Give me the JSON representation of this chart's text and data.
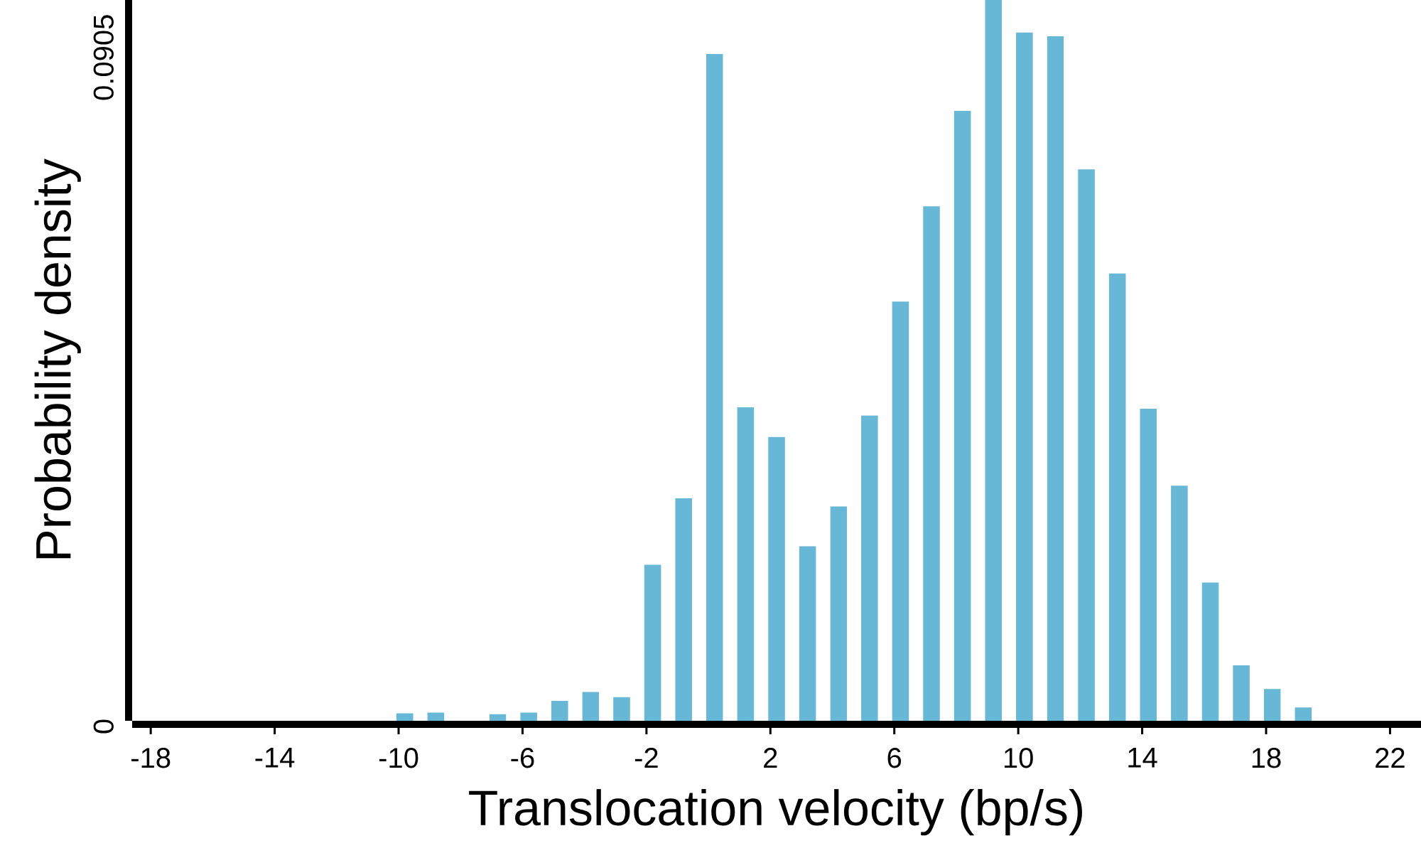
{
  "chart_data": {
    "type": "bar",
    "xlabel": "Translocation velocity (bp/s)",
    "ylabel": "Probability density",
    "color": "#67b8d6",
    "x": [
      -9.8,
      -8.8,
      -7.8,
      -6.8,
      -5.8,
      -4.8,
      -3.8,
      -2.8,
      -1.8,
      -0.8,
      0.2,
      1.2,
      2.2,
      3.2,
      4.2,
      5.2,
      6.2,
      7.2,
      8.2,
      9.2,
      10.2,
      11.2,
      12.2,
      13.2,
      14.2,
      15.2,
      16.2,
      17.2,
      18.2,
      19.2
    ],
    "values": [
      0.001,
      0.0011,
      0,
      0.0009,
      0.0011,
      0.0027,
      0.0039,
      0.0032,
      0.0211,
      0.0301,
      0.0902,
      0.0424,
      0.0384,
      0.0236,
      0.029,
      0.0413,
      0.0567,
      0.0696,
      0.0825,
      0.0975,
      0.0931,
      0.0926,
      0.0746,
      0.0605,
      0.0422,
      0.0318,
      0.0187,
      0.0075,
      0.0043,
      0.0018
    ],
    "xlim": [
      -18.6,
      23
    ],
    "ylim": [
      0,
      0.0975
    ],
    "xticks": [
      -18,
      -14,
      -10,
      -6,
      -2,
      2,
      6,
      10,
      14,
      18,
      22
    ],
    "yticks": [
      0,
      0.0905
    ]
  }
}
